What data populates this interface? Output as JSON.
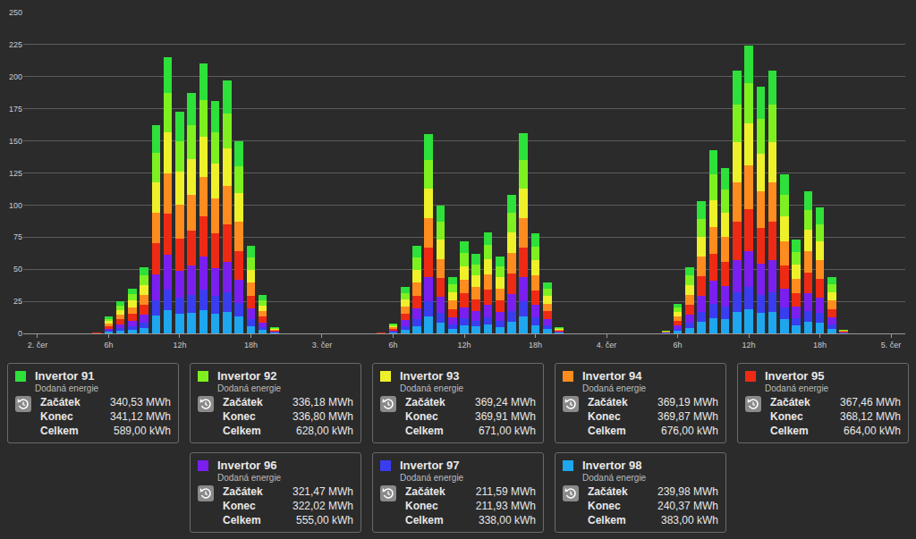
{
  "chart_data": {
    "type": "bar",
    "stacked": true,
    "grid": true,
    "x": [
      5,
      6,
      7,
      8,
      9,
      10,
      11,
      12,
      13,
      14,
      15,
      16,
      17,
      18,
      19,
      20,
      29,
      30,
      31,
      32,
      33,
      34,
      35,
      36,
      37,
      38,
      39,
      40,
      41,
      42,
      43,
      44,
      53,
      54,
      55,
      56,
      57,
      58,
      59,
      60,
      61,
      62,
      63,
      64,
      65,
      66,
      67,
      68
    ],
    "xlim": [
      -1.2,
      73.2
    ],
    "xticks": [
      {
        "value": 0,
        "label": "2. čer"
      },
      {
        "value": 6,
        "label": "6h"
      },
      {
        "value": 12,
        "label": "12h"
      },
      {
        "value": 18,
        "label": "18h"
      },
      {
        "value": 24,
        "label": "3. čer"
      },
      {
        "value": 30,
        "label": "6h"
      },
      {
        "value": 36,
        "label": "12h"
      },
      {
        "value": 42,
        "label": "18h"
      },
      {
        "value": 48,
        "label": "4. čer"
      },
      {
        "value": 54,
        "label": "6h"
      },
      {
        "value": 60,
        "label": "12h"
      },
      {
        "value": 66,
        "label": "18h"
      },
      {
        "value": 72,
        "label": "5. čer"
      }
    ],
    "ylim": [
      0,
      250
    ],
    "yticks": [
      0,
      25,
      50,
      75,
      100,
      125,
      150,
      175,
      200,
      225,
      250
    ],
    "series": [
      {
        "name": "Invertor 91",
        "color": "#2ee03a",
        "values": [
          0.1,
          1.7,
          3.3,
          4.6,
          6.8,
          21,
          28,
          23,
          25,
          28,
          24,
          26,
          20,
          8.9,
          3.9,
          0.7,
          0.1,
          1.0,
          4.7,
          8.9,
          20,
          13.1,
          5.8,
          9.4,
          8.1,
          10.3,
          7.9,
          14.1,
          21,
          10.2,
          5.2,
          0.7,
          0.2,
          3,
          6.8,
          13.5,
          19,
          17,
          27,
          29,
          25,
          27,
          16,
          9.6,
          14.5,
          12.8,
          5.8,
          0.4
        ]
      },
      {
        "name": "Invertor 92",
        "color": "#7ef020",
        "values": [
          0.1,
          1.8,
          3.5,
          4.9,
          7.2,
          23,
          30,
          24,
          26,
          29,
          25,
          27,
          21,
          9.5,
          4.2,
          0.7,
          0.1,
          1.1,
          5.0,
          9.5,
          22,
          13.9,
          6.1,
          10,
          8.6,
          11,
          8.3,
          15,
          22,
          10.8,
          5.6,
          0.7,
          0.3,
          3.2,
          7.2,
          14.3,
          20,
          18,
          29,
          31,
          27,
          29,
          17,
          10.1,
          15.4,
          13.6,
          6.1,
          0.4
        ]
      },
      {
        "name": "Invertor 93",
        "color": "#eef02a",
        "values": [
          0.2,
          1.9,
          3.7,
          5.2,
          7.7,
          24,
          32,
          26,
          28,
          31,
          27,
          29,
          22,
          10.1,
          4.5,
          0.7,
          0.2,
          1.2,
          5.4,
          10.1,
          23,
          14.9,
          6.6,
          10.7,
          9.2,
          11.8,
          8.9,
          16.1,
          23,
          11.6,
          6,
          0.7,
          0.3,
          3.4,
          7.7,
          15.3,
          21,
          19,
          31,
          33,
          29,
          31,
          19,
          10.9,
          16.5,
          14.6,
          6.6,
          0.4
        ]
      },
      {
        "name": "Invertor 94",
        "color": "#ff8c1e",
        "values": [
          0.1,
          2.0,
          3.8,
          5.3,
          7.8,
          24,
          32,
          26,
          28,
          31,
          27,
          30,
          23,
          10.2,
          4.5,
          0.8,
          0.1,
          1.2,
          5.4,
          10.2,
          23,
          15,
          6.6,
          10.8,
          9.3,
          11.9,
          9,
          16.2,
          23,
          11.7,
          6,
          0.8,
          0.3,
          3.5,
          7.8,
          15.5,
          21,
          19,
          31,
          34,
          29,
          31,
          19,
          11,
          16.7,
          14.7,
          6.6,
          0.5
        ]
      },
      {
        "name": "Invertor 95",
        "color": "#ee2a14",
        "values": [
          0.2,
          1.9,
          3.7,
          5.1,
          7.6,
          24,
          32,
          25,
          27,
          31,
          27,
          29,
          22,
          10,
          4.4,
          0.7,
          0.2,
          1.2,
          5.3,
          10,
          23,
          14.7,
          6.5,
          10.6,
          9.1,
          11.6,
          8.8,
          15.9,
          23,
          11.5,
          5.9,
          0.7,
          0.3,
          3.4,
          7.6,
          15.1,
          21,
          19,
          30,
          33,
          28,
          30,
          18,
          10.7,
          16.3,
          14.4,
          6.5,
          0.4
        ]
      },
      {
        "name": "Invertor 96",
        "color": "#7a1ff0",
        "values": [
          0.1,
          1.6,
          3.1,
          4.3,
          6.4,
          20,
          27,
          21,
          23,
          26,
          22,
          24,
          18,
          8.4,
          3.7,
          0.6,
          0.1,
          1.0,
          4.4,
          8.4,
          19,
          12.3,
          5.4,
          8.9,
          7.6,
          9.7,
          7.4,
          13.3,
          19,
          9.6,
          4.9,
          0.6,
          0.2,
          2.8,
          6.4,
          12.7,
          18,
          16,
          25,
          28,
          24,
          25,
          15,
          9,
          13.7,
          12.1,
          5.4,
          0.4
        ]
      },
      {
        "name": "Invertor 97",
        "color": "#3a3cf0",
        "values": [
          0.1,
          1.0,
          1.9,
          2.6,
          3.9,
          12,
          16,
          13,
          14,
          16,
          14,
          15,
          11,
          5.1,
          2.2,
          0.4,
          0.1,
          0.6,
          2.7,
          5.1,
          12,
          7.5,
          3.3,
          5.4,
          4.7,
          5.9,
          4.5,
          8.1,
          12,
          5.9,
          3,
          0.4,
          0.2,
          1.7,
          3.9,
          7.7,
          11,
          10,
          15,
          17,
          14,
          15,
          9,
          5.5,
          8.3,
          7.4,
          3.3,
          0.2
        ]
      },
      {
        "name": "Invertor 98",
        "color": "#1ea6ee",
        "values": [
          0.1,
          1.1,
          2.1,
          3.0,
          4.4,
          14,
          18,
          15,
          16,
          18,
          15,
          17,
          13,
          5.8,
          2.6,
          0.4,
          0.1,
          0.7,
          3.1,
          5.8,
          13,
          8.5,
          3.7,
          6.1,
          5.3,
          6.7,
          5.1,
          9.2,
          13,
          6.6,
          3.4,
          0.4,
          0.2,
          2,
          4.4,
          8.8,
          12,
          11,
          17,
          19,
          16,
          17,
          11,
          6.2,
          9.4,
          8.3,
          3.7,
          0.3
        ]
      }
    ]
  },
  "cards": [
    {
      "name": "Invertor 91",
      "subtitle": "Dodaná energie",
      "rows": [
        {
          "label": "Začátek",
          "value": "340,53 MWh"
        },
        {
          "label": "Konec",
          "value": "341,12 MWh"
        },
        {
          "label": "Celkem",
          "value": "589,00 kWh"
        }
      ]
    },
    {
      "name": "Invertor 92",
      "subtitle": "Dodaná energie",
      "rows": [
        {
          "label": "Začátek",
          "value": "336,18 MWh"
        },
        {
          "label": "Konec",
          "value": "336,80 MWh"
        },
        {
          "label": "Celkem",
          "value": "628,00 kWh"
        }
      ]
    },
    {
      "name": "Invertor 93",
      "subtitle": "Dodaná energie",
      "rows": [
        {
          "label": "Začátek",
          "value": "369,24 MWh"
        },
        {
          "label": "Konec",
          "value": "369,91 MWh"
        },
        {
          "label": "Celkem",
          "value": "671,00 kWh"
        }
      ]
    },
    {
      "name": "Invertor 94",
      "subtitle": "Dodaná energie",
      "rows": [
        {
          "label": "Začátek",
          "value": "369,19 MWh"
        },
        {
          "label": "Konec",
          "value": "369,87 MWh"
        },
        {
          "label": "Celkem",
          "value": "676,00 kWh"
        }
      ]
    },
    {
      "name": "Invertor 95",
      "subtitle": "Dodaná energie",
      "rows": [
        {
          "label": "Začátek",
          "value": "367,46 MWh"
        },
        {
          "label": "Konec",
          "value": "368,12 MWh"
        },
        {
          "label": "Celkem",
          "value": "664,00 kWh"
        }
      ]
    },
    {
      "name": "Invertor 96",
      "subtitle": "Dodaná energie",
      "rows": [
        {
          "label": "Začátek",
          "value": "321,47 MWh"
        },
        {
          "label": "Konec",
          "value": "322,02 MWh"
        },
        {
          "label": "Celkem",
          "value": "555,00 kWh"
        }
      ]
    },
    {
      "name": "Invertor 97",
      "subtitle": "Dodaná energie",
      "rows": [
        {
          "label": "Začátek",
          "value": "211,59 MWh"
        },
        {
          "label": "Konec",
          "value": "211,93 MWh"
        },
        {
          "label": "Celkem",
          "value": "338,00 kWh"
        }
      ]
    },
    {
      "name": "Invertor 98",
      "subtitle": "Dodaná energie",
      "rows": [
        {
          "label": "Začátek",
          "value": "239,98 MWh"
        },
        {
          "label": "Konec",
          "value": "240,37 MWh"
        },
        {
          "label": "Celkem",
          "value": "383,00 kWh"
        }
      ]
    }
  ]
}
